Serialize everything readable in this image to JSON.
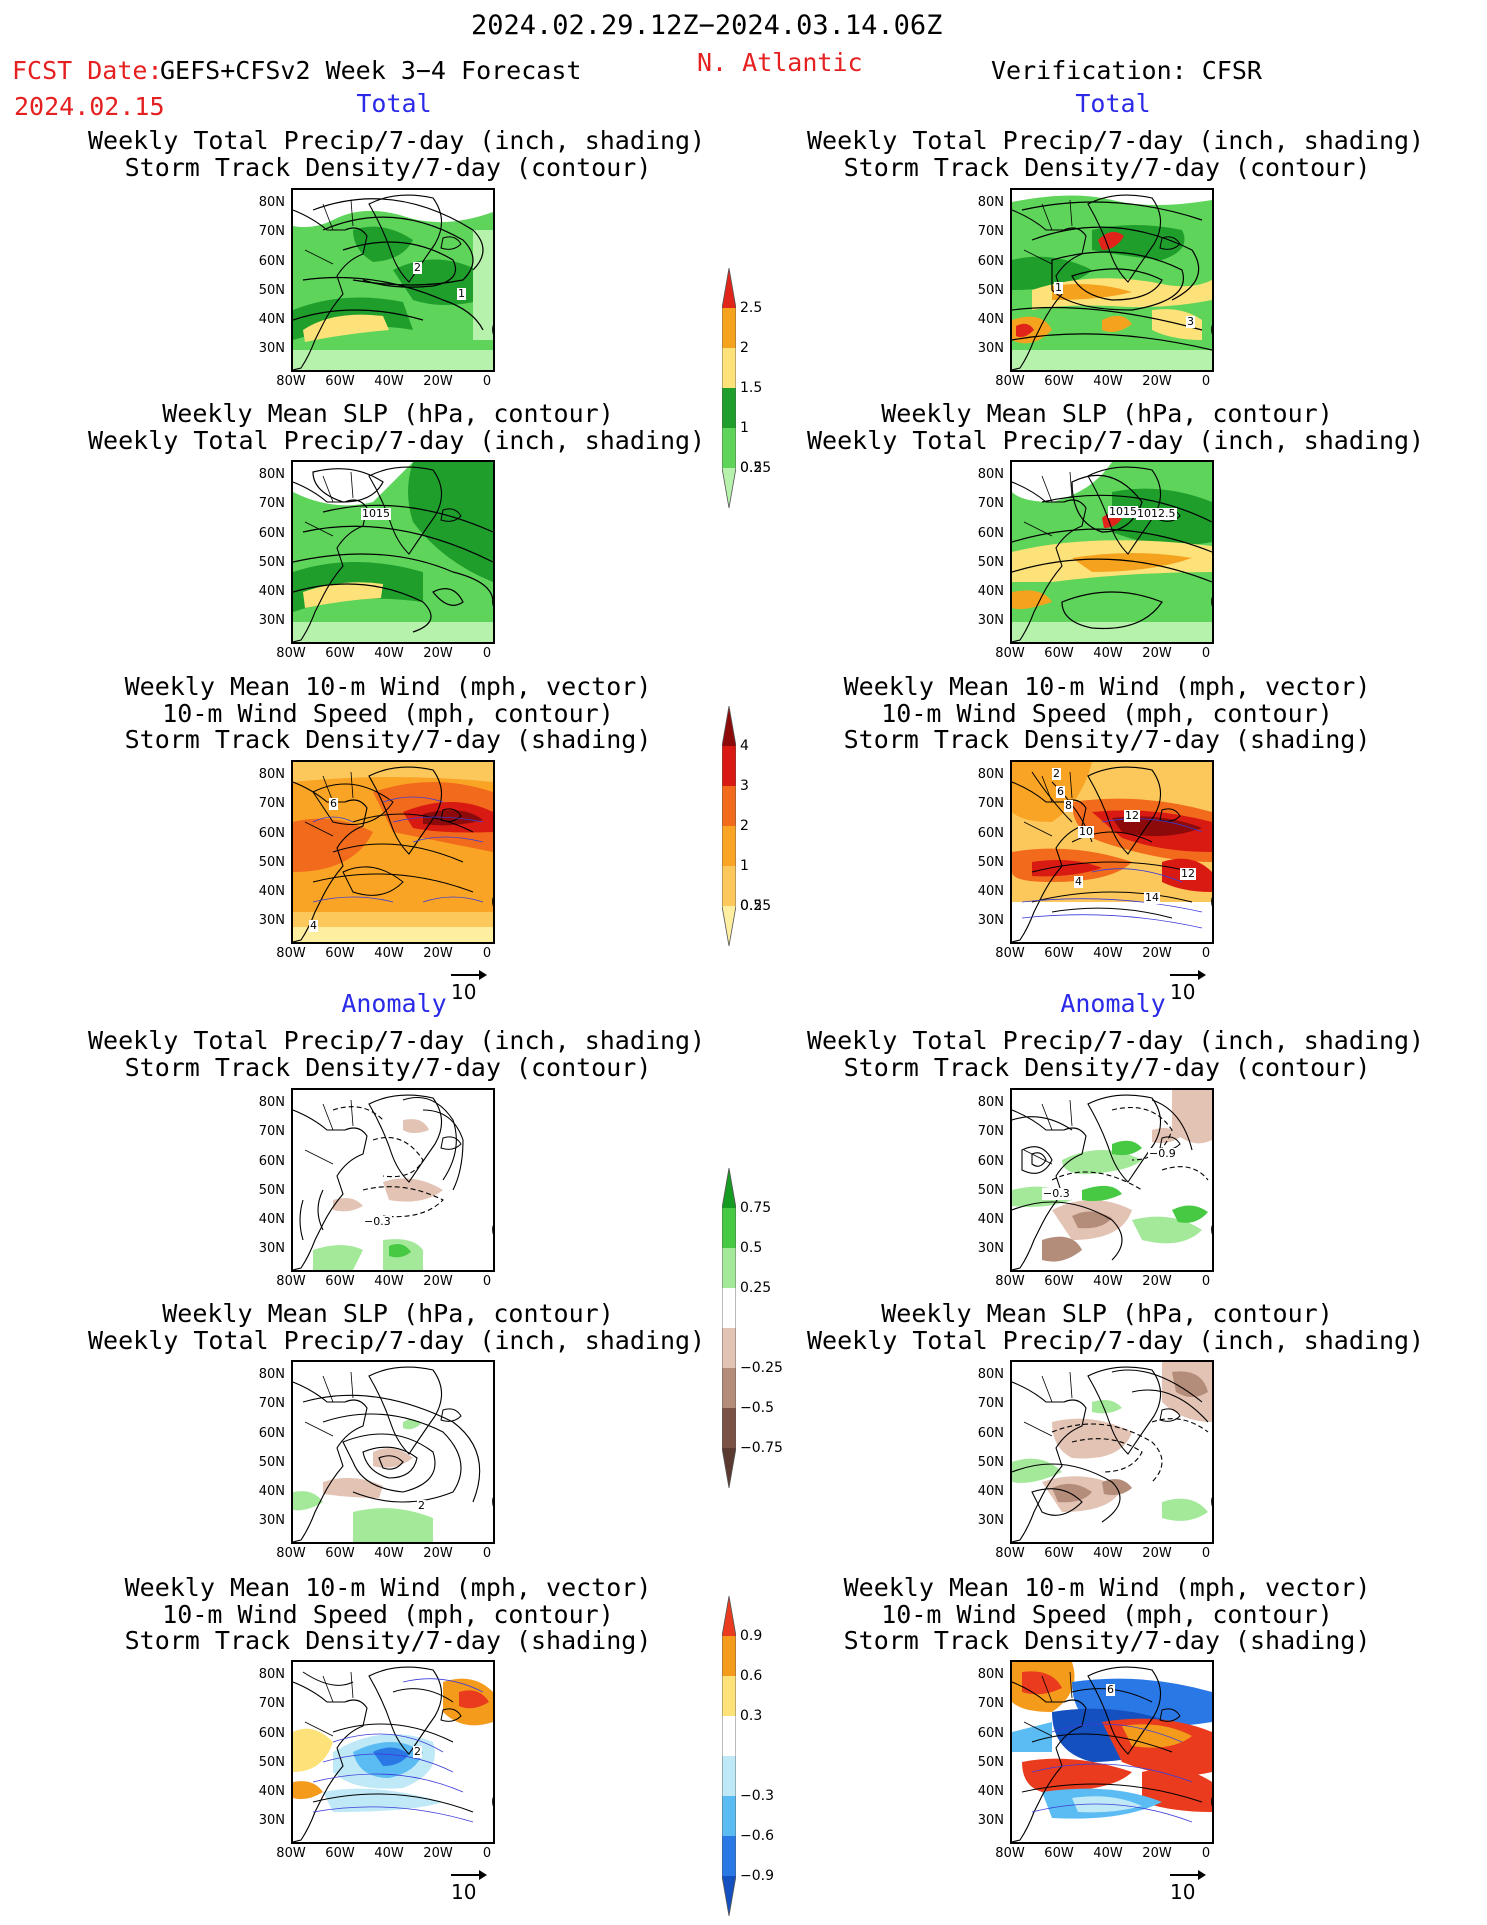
{
  "header": {
    "period": "2024.02.29.12Z−2024.03.14.06Z",
    "fcst_date_label": "FCST Date:",
    "forecast_title": "GEFS+CFSv2 Week 3−4 Forecast",
    "fcst_date": "2024.02.15",
    "region": "N. Atlantic",
    "verification": "Verification: CFSR"
  },
  "sections": {
    "total": "Total",
    "anomaly": "Anomaly"
  },
  "titles": {
    "precip_track": [
      "Weekly Total Precip/7-day (inch, shading)",
      "Storm Track Density/7-day (contour)"
    ],
    "slp_precip": [
      "Weekly Mean SLP (hPa, contour)",
      "Weekly Total Precip/7-day (inch, shading)"
    ],
    "wind_track": [
      "Weekly Mean 10-m Wind (mph, vector)",
      "10-m Wind Speed (mph, contour)",
      "Storm Track Density/7-day (shading)"
    ]
  },
  "axes": {
    "lat_labels": [
      "80N",
      "70N",
      "60N",
      "50N",
      "40N",
      "30N"
    ],
    "lon_labels": [
      "80W",
      "60W",
      "40W",
      "20W",
      "0"
    ]
  },
  "vector_reference": "10",
  "colorbars": {
    "precip_total": {
      "labels": [
        "2.5",
        "2",
        "1.5",
        "1",
        "0.5",
        "0.25"
      ],
      "colors": [
        "#e0241a",
        "#f5a31e",
        "#fde27a",
        "#1f9e2c",
        "#5fd45b",
        "#b7f2ad"
      ]
    },
    "track_total": {
      "labels": [
        "4",
        "3",
        "2",
        "1",
        "0.5",
        "0.25"
      ],
      "colors": [
        "#8c0a0a",
        "#d91a12",
        "#f26a1b",
        "#f9a424",
        "#fcc85c",
        "#fdeea0"
      ]
    },
    "precip_anom": {
      "labels": [
        "0.75",
        "0.5",
        "0.25",
        "−0.25",
        "−0.5",
        "−0.75"
      ],
      "colors": [
        "#159a22",
        "#47c944",
        "#a4e99a",
        "#ffffff",
        "#e2c3b4",
        "#b48c7a",
        "#7a5246",
        "#5a3a30"
      ]
    },
    "track_anom": {
      "labels": [
        "0.9",
        "0.6",
        "0.3",
        "−0.3",
        "−0.6",
        "−0.9"
      ],
      "colors": [
        "#ea3b1e",
        "#f59b1c",
        "#fde27a",
        "#ffffff",
        "#bfe9f7",
        "#5bbcf3",
        "#2a78e6",
        "#1450c0"
      ]
    }
  },
  "contour_labels": {
    "p1": [
      "2",
      "1"
    ],
    "p2": [
      "1015"
    ],
    "p3": [
      "6",
      "4"
    ],
    "p4": [
      "−0.3"
    ],
    "p5": [
      "2"
    ],
    "p6": [
      "2"
    ],
    "q1": [
      "1",
      "3"
    ],
    "q2": [
      "1015",
      "1012.5"
    ],
    "q3": [
      "2",
      "6",
      "8",
      "10",
      "12",
      "4",
      "12",
      "14"
    ],
    "q4": [
      "−0.9",
      "−0.3"
    ],
    "q6": [
      "6"
    ]
  }
}
